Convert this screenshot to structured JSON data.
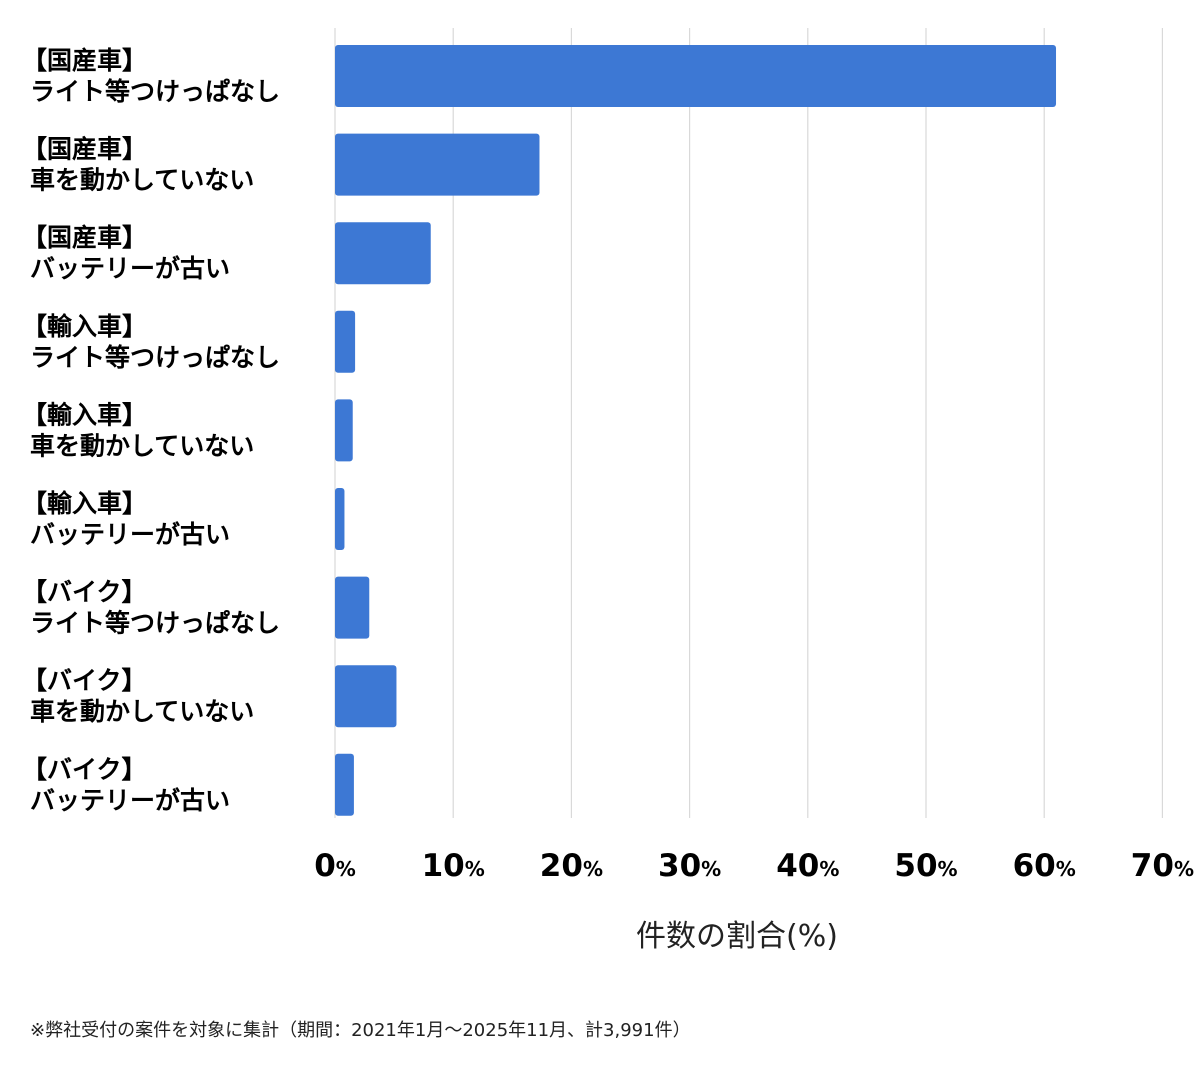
{
  "chart_data": {
    "type": "bar",
    "orientation": "horizontal",
    "categories": [
      [
        "【国産車】",
        "ライト等つけっぱなし"
      ],
      [
        "【国産車】",
        "車を動かしていない"
      ],
      [
        "【国産車】",
        "バッテリーが古い"
      ],
      [
        "【輸入車】",
        "ライト等つけっぱなし"
      ],
      [
        "【輸入車】",
        "車を動かしていない"
      ],
      [
        "【輸入車】",
        "バッテリーが古い"
      ],
      [
        "【バイク】",
        "ライト等つけっぱなし"
      ],
      [
        "【バイク】",
        "車を動かしていない"
      ],
      [
        "【バイク】",
        "バッテリーが古い"
      ]
    ],
    "values": [
      61.0,
      17.3,
      8.1,
      1.7,
      1.5,
      0.8,
      2.9,
      5.2,
      1.6
    ],
    "xlabel": "件数の割合(%)",
    "xlim": [
      0,
      70
    ],
    "ticks": [
      {
        "num": "0",
        "unit": "%"
      },
      {
        "num": "10",
        "unit": "%"
      },
      {
        "num": "20",
        "unit": "%"
      },
      {
        "num": "30",
        "unit": "%"
      },
      {
        "num": "40",
        "unit": "%"
      },
      {
        "num": "50",
        "unit": "%"
      },
      {
        "num": "60",
        "unit": "%"
      },
      {
        "num": "70",
        "unit": "%"
      }
    ],
    "grid": true,
    "bar_color": "#3d78d4",
    "grid_color": "#d9d9d9"
  },
  "footnote": "※弊社受付の案件を対象に集計（期間：2021年1月〜2025年11月、計3,991件）"
}
